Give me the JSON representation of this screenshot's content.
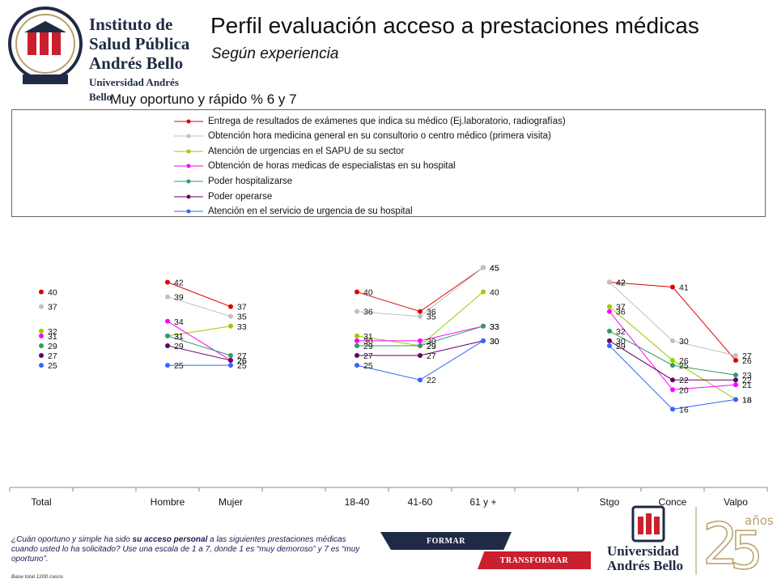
{
  "header": {
    "logo_lines": [
      "Instituto de",
      "Salud Pública",
      "Andrés Bello",
      "Universidad Andrés Bello"
    ],
    "title": "Perfil evaluación acceso a prestaciones médicas",
    "subtitle": "Según experiencia",
    "chart_label": "Muy oportuno y rápido % 6 y 7"
  },
  "colors": {
    "navy": "#1f2a44",
    "red": "#c91f2e",
    "gold": "#b8a06a"
  },
  "chart_data": {
    "type": "line",
    "categories": [
      "Total",
      "",
      "Hombre",
      "Mujer",
      "",
      "18-40",
      "41-60",
      "61 y +",
      "",
      "Stgo",
      "Conce",
      "Valpo"
    ],
    "groups": [
      [
        0
      ],
      [
        2,
        3
      ],
      [
        5,
        6,
        7
      ],
      [
        9,
        10,
        11
      ]
    ],
    "series": [
      {
        "name": "Entrega de resultados de exámenes que indica su médico (Ej.laboratorio, radiografías)",
        "color": "#e00000",
        "values": [
          40,
          null,
          42,
          37,
          null,
          40,
          36,
          45,
          null,
          42,
          41,
          26
        ]
      },
      {
        "name": "Obtención hora medicina general en su consultorio o centro médico (primera visita)",
        "color": "#c0c0c0",
        "values": [
          37,
          null,
          39,
          35,
          null,
          36,
          35,
          45,
          null,
          42,
          30,
          27
        ]
      },
      {
        "name": "Atención de urgencias en el SAPU de su sector",
        "color": "#99cc00",
        "values": [
          32,
          null,
          31,
          33,
          null,
          31,
          29,
          40,
          null,
          37,
          26,
          18
        ]
      },
      {
        "name": "Obtención de horas medicas de especialistas en su hospital",
        "color": "#ff00ff",
        "values": [
          31,
          null,
          34,
          26,
          null,
          30,
          30,
          33,
          null,
          36,
          20,
          21
        ]
      },
      {
        "name": "Poder hospitalizarse",
        "color": "#339966",
        "values": [
          29,
          null,
          31,
          27,
          null,
          29,
          29,
          33,
          null,
          32,
          25,
          23
        ]
      },
      {
        "name": "Poder operarse",
        "color": "#660066",
        "values": [
          27,
          null,
          29,
          26,
          null,
          27,
          27,
          30,
          null,
          30,
          22,
          22
        ]
      },
      {
        "name": "Atención en el servicio de urgencia de su hospital",
        "color": "#3366ff",
        "values": [
          25,
          null,
          25,
          25,
          null,
          25,
          22,
          30,
          null,
          29,
          16,
          18
        ]
      }
    ],
    "ylim": [
      0,
      55
    ],
    "grid": false,
    "legend": "top"
  },
  "footer": {
    "note_prefix": "¿Cuán oportuno y simple ha sido ",
    "note_bold": "su acceso personal",
    "note_suffix": " a las siguientes prestaciones médicas cuando usted lo ha solicitado? Use una escala de 1 a 7, donde 1 es “muy demoroso” y 7 es “muy oportuno”.",
    "base": "Base total 1200  casos",
    "banner_top": "FORMAR",
    "banner_bottom": "TRANSFORMAR",
    "uab_line1": "Universidad",
    "uab_line2": "Andrés Bello",
    "anniversary_word": "años"
  }
}
